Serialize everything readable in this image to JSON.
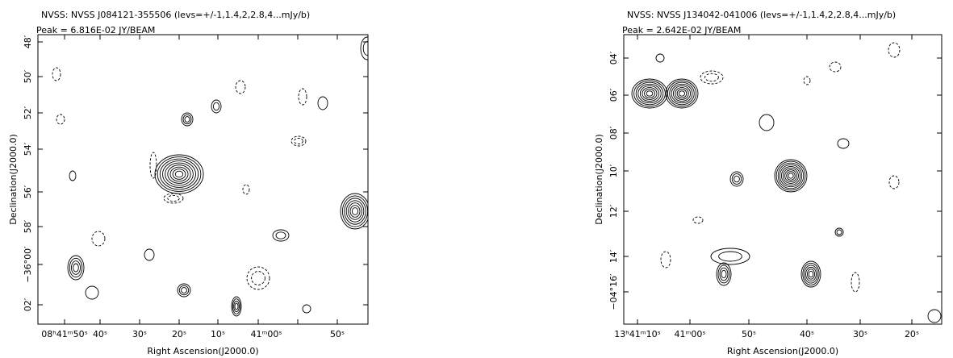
{
  "panels": [
    {
      "title": "NVSS: NVSS J084121-355506 (levs=+/-1,1.4,2,2.8,4...mJy/b)",
      "peak": "Peak =    6.816E-02 JY/BEAM",
      "xlabel": "Right Ascension(J2000.0)",
      "ylabel": "Declination(J2000.0)",
      "xticks": [
        "08ʰ41ᵐ50ˢ",
        "40ˢ",
        "30ˢ",
        "20ˢ",
        "10ˢ",
        "41ᵐ00ˢ",
        "50ˢ"
      ],
      "yticks": [
        "48′",
        "50′",
        "52′",
        "54′",
        "56′",
        "58′",
        "−36°00′",
        "02′"
      ]
    },
    {
      "title": "NVSS: NVSS J134042-041006 (levs=+/-1,1.4,2,2.8,4...mJy/b)",
      "peak": "Peak =    2.642E-02 JY/BEAM",
      "xlabel": "Right Ascension(J2000.0)",
      "ylabel": "Declination(J2000.0)",
      "xticks": [
        "13ʰ41ᵐ10ˢ",
        "41ᵐ00ˢ",
        "50ˢ",
        "40ˢ",
        "30ˢ",
        "20ˢ"
      ],
      "yticks": [
        "04′",
        "06′",
        "08′",
        "10′",
        "12′",
        "14′",
        "−04°16′"
      ]
    }
  ]
}
